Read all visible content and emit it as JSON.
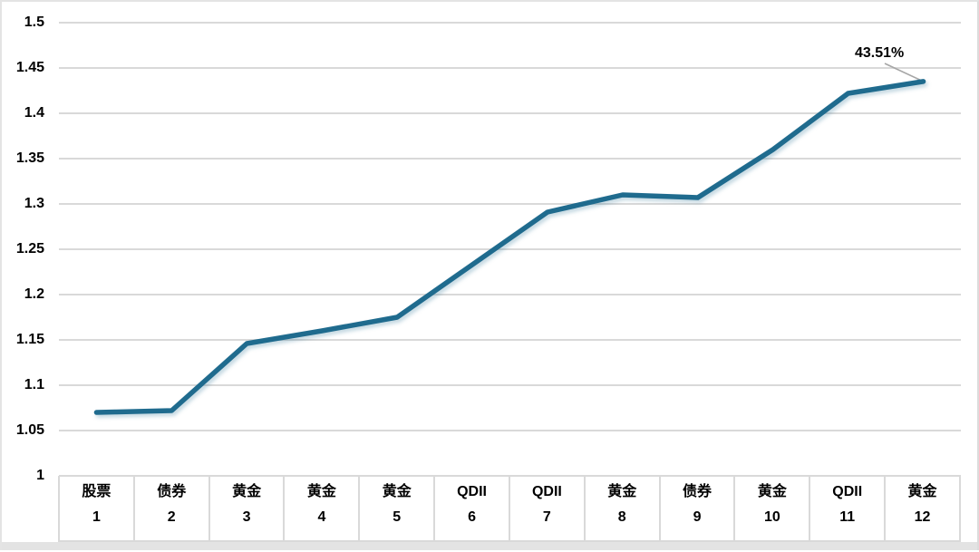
{
  "chart_data": {
    "type": "line",
    "title": "",
    "xlabel": "",
    "ylabel": "",
    "categories": [
      "股票",
      "债券",
      "黄金",
      "黄金",
      "黄金",
      "QDII",
      "QDII",
      "黄金",
      "债券",
      "黄金",
      "QDII",
      "黄金"
    ],
    "x_numbers": [
      "1",
      "2",
      "3",
      "4",
      "5",
      "6",
      "7",
      "8",
      "9",
      "10",
      "11",
      "12"
    ],
    "values": [
      1.07,
      1.072,
      1.146,
      1.16,
      1.175,
      1.233,
      1.291,
      1.31,
      1.307,
      1.36,
      1.422,
      1.4351
    ],
    "y_ticks": [
      "1.5",
      "1.45",
      "1.4",
      "1.35",
      "1.3",
      "1.25",
      "1.2",
      "1.15",
      "1.1",
      "1.05",
      "1"
    ],
    "ylim": [
      1.0,
      1.5
    ],
    "grid": "horizontal",
    "legend": "none",
    "annotation": {
      "label": "43.51%",
      "target_index": 11,
      "target_value": 1.4351
    },
    "colors": {
      "line": "#1f6b8e",
      "grid": "#d9d9d9",
      "leader": "#a6a6a6",
      "text": "#000000"
    }
  }
}
